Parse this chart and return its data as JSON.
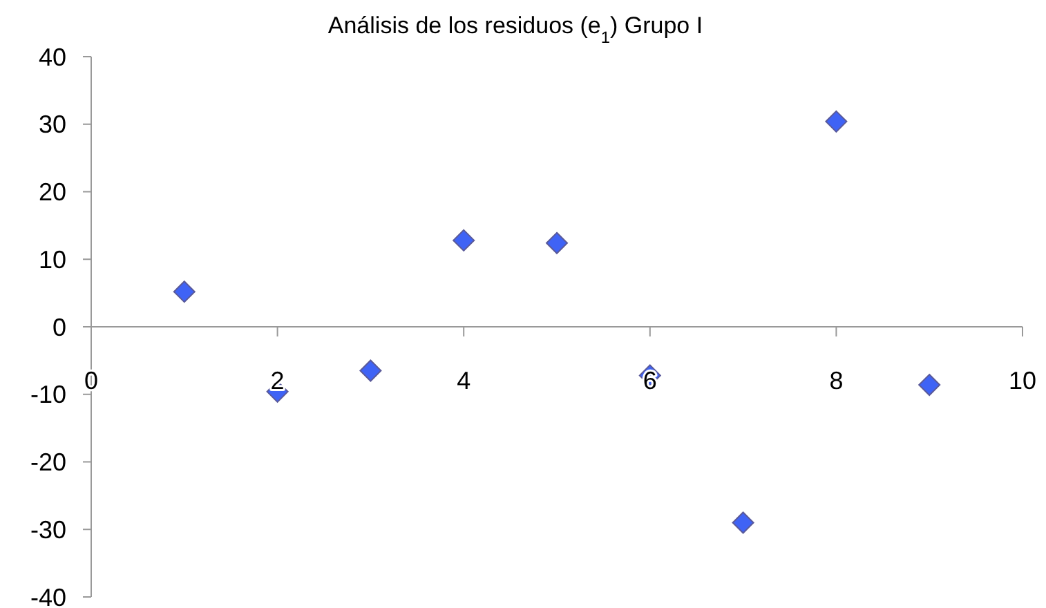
{
  "chart_data": {
    "type": "scatter",
    "title": "Análisis de los residuos (e$_{1}$) Grupo I",
    "x": [
      1,
      2,
      3,
      4,
      5,
      6,
      7,
      8,
      9
    ],
    "series": [
      {
        "color": "#3f63f5",
        "values": [
          5.2,
          -9.6,
          -6.5,
          12.8,
          12.4,
          -7.2,
          -29.0,
          30.4,
          -8.6
        ]
      }
    ],
    "xlim": [
      0,
      10
    ],
    "xticks": [
      0,
      2,
      4,
      6,
      8,
      10
    ],
    "ylim": [
      -40,
      40
    ],
    "yticks": [
      -40,
      -30,
      -20,
      -10,
      0,
      10,
      20,
      30,
      40
    ],
    "marker": "diamond",
    "grid": false
  }
}
